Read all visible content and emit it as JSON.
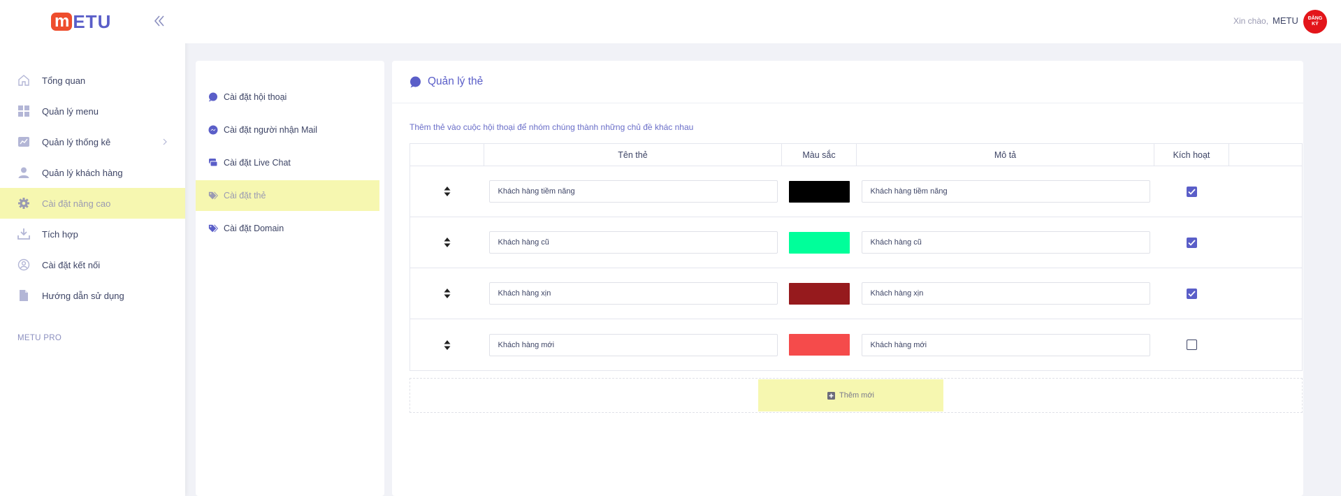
{
  "app": {
    "logo_m": "m",
    "logo_etu": "ETU"
  },
  "sidebar": {
    "items": [
      {
        "label": "Tổng quan",
        "icon": "home-icon"
      },
      {
        "label": "Quản lý menu",
        "icon": "grid-icon"
      },
      {
        "label": "Quản lý thống kê",
        "icon": "chart-icon"
      },
      {
        "label": "Quản lý khách hàng",
        "icon": "user-icon"
      },
      {
        "label": "Cài đặt nâng cao",
        "icon": "gear-icon",
        "active": true
      },
      {
        "label": "Tích hợp",
        "icon": "download-icon"
      },
      {
        "label": "Cài đặt kết nối",
        "icon": "user-circle-icon"
      },
      {
        "label": "Hướng dẫn sử dụng",
        "icon": "document-icon"
      }
    ],
    "section_label": "METU PRO"
  },
  "header": {
    "greeting": "Xin chào,",
    "user_name": "METU",
    "avatar_line1": "ĐĂNG",
    "avatar_line2": "KÝ"
  },
  "submenu": {
    "items": [
      {
        "label": "Cài đặt hội thoại",
        "icon": "chat-bubble-icon"
      },
      {
        "label": "Cài đặt người nhận Mail",
        "icon": "messenger-icon"
      },
      {
        "label": "Cài đặt Live Chat",
        "icon": "comments-icon"
      },
      {
        "label": "Cài đặt thẻ",
        "icon": "tags-icon",
        "active": true
      },
      {
        "label": "Cài đặt Domain",
        "icon": "tags-icon"
      }
    ]
  },
  "main": {
    "title": "Quản lý thẻ",
    "description": "Thêm thẻ vào cuộc hội thoại để nhóm chúng thành những chủ đề khác nhau",
    "columns": [
      "",
      "Tên thẻ",
      "Màu sắc",
      "Mô tả",
      "Kích hoạt",
      ""
    ],
    "rows": [
      {
        "name": "Khách hàng tiềm năng",
        "color": "#000000",
        "description": "Khách hàng tiềm năng",
        "active": true
      },
      {
        "name": "Khách hàng cũ",
        "color": "#00ff9a",
        "description": "Khách hàng cũ",
        "active": true
      },
      {
        "name": "Khách hàng xịn",
        "color": "#961a1d",
        "description": "Khách hàng xịn",
        "active": true
      },
      {
        "name": "Khách hàng mới",
        "color": "#f54b4b",
        "description": "Khách hàng mới",
        "active": false
      }
    ],
    "add_label": "Thêm mới"
  },
  "colors": {
    "accent": "#5a5ec8",
    "highlight": "#f6f7b0",
    "logo_red": "#ee4d2d",
    "avatar_red": "#e3151a"
  }
}
